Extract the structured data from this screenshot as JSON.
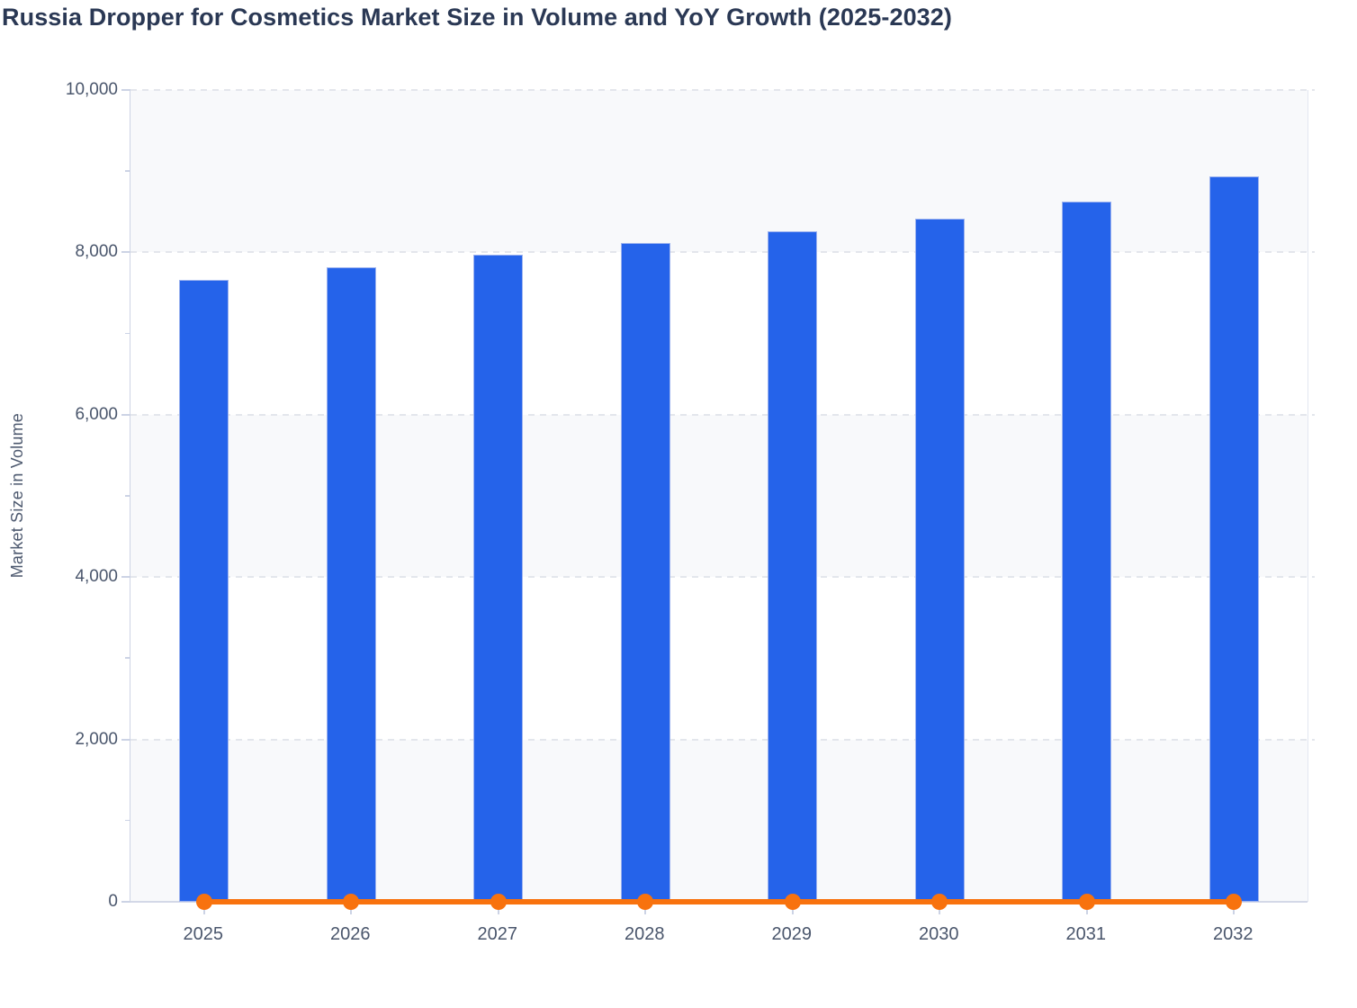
{
  "title": "Russia Dropper for Cosmetics Market Size in Volume and YoY Growth (2025-2032)",
  "colors": {
    "bar_fill": "#2563ea",
    "bar_border": "#9db3ef",
    "line": "#f8720e",
    "band_shade": "#f8f9fb",
    "band_plain": "#ffffff",
    "grid_dash": "#e3e6ec",
    "axis_line": "#cdd3e5",
    "text_title": "#2a3854",
    "text_tick": "#4a566c"
  },
  "chart_data": {
    "type": "bar",
    "title": "Russia Dropper for Cosmetics Market Size in Volume and YoY Growth (2025-2032)",
    "categories": [
      "2025",
      "2026",
      "2027",
      "2028",
      "2029",
      "2030",
      "2031",
      "2032"
    ],
    "series": [
      {
        "name": "Market Size in Volume",
        "type": "bar",
        "values": [
          7660,
          7815,
          7970,
          8120,
          8265,
          8410,
          8625,
          8940
        ]
      },
      {
        "name": "YoY Growth",
        "type": "line",
        "values": [
          0,
          0,
          0,
          0,
          0,
          0,
          0,
          0
        ]
      }
    ],
    "xlabel": "",
    "ylabel": "Market Size in Volume",
    "ylim": [
      0,
      10000
    ],
    "yticks": [
      {
        "label": "0",
        "value": 0
      },
      {
        "label": "2,000",
        "value": 2000
      },
      {
        "label": "4,000",
        "value": 4000
      },
      {
        "label": "6,000",
        "value": 6000
      },
      {
        "label": "8,000",
        "value": 8000
      },
      {
        "label": "10,000",
        "value": 10000
      }
    ],
    "minor_ticks": [
      1000,
      3000,
      5000,
      7000,
      9000
    ],
    "grid": "horizontal dashed gridlines with alternating shaded bands",
    "legend_position": "none"
  }
}
